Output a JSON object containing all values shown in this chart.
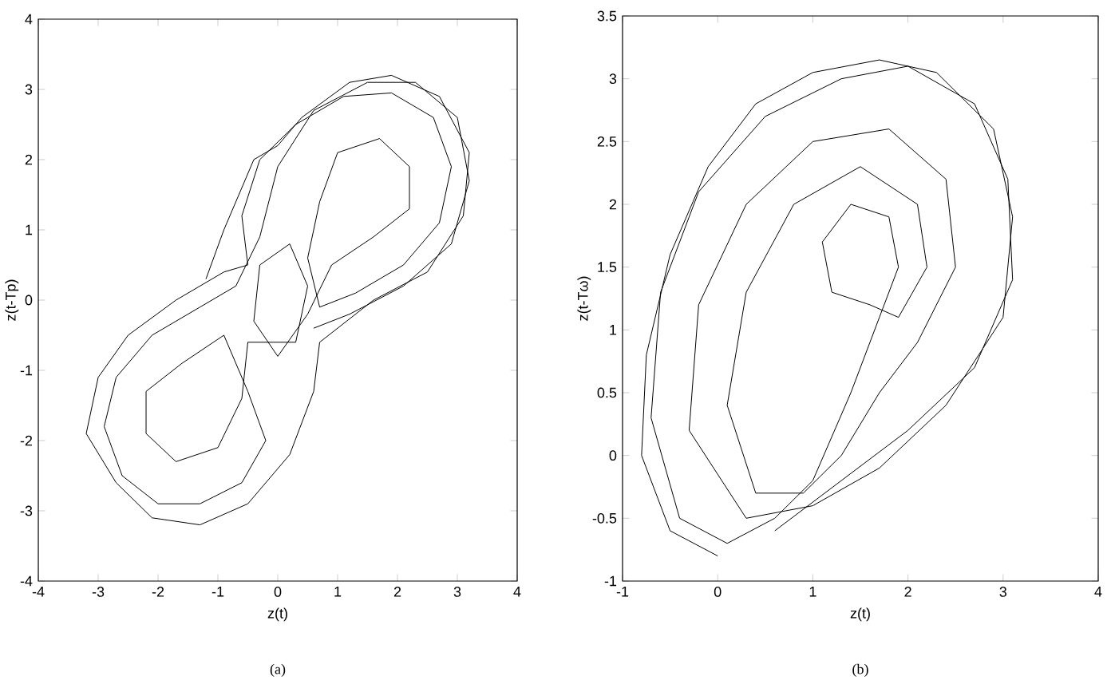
{
  "chart_data": [
    {
      "type": "line",
      "xlabel": "z(t)",
      "ylabel": "z(t-Tp)",
      "color": "#000000",
      "annotations": [
        "(a)"
      ],
      "xlim": [
        -4,
        4
      ],
      "ylim": [
        -4,
        4
      ],
      "xticks": [
        -4,
        -3,
        -2,
        -1,
        0,
        1,
        2,
        3,
        4
      ],
      "yticks": [
        -4,
        -3,
        -2,
        -1,
        0,
        1,
        2,
        3,
        4
      ],
      "x": [
        -1.2,
        -0.9,
        -0.4,
        0,
        0.4,
        1.2,
        1.9,
        2.7,
        3.2,
        3.1,
        2.5,
        1.6,
        0.7,
        0.6,
        0.2,
        -0.5,
        -1.3,
        -2.1,
        -2.7,
        -3.2,
        -3.0,
        -2.5,
        -1.7,
        -0.9,
        -0.5,
        -0.6,
        -0.3,
        0.3,
        1.1,
        1.9,
        2.6,
        2.9,
        2.7,
        2.1,
        1.3,
        0.7,
        0.5,
        0.7,
        1.0,
        1.7,
        2.2,
        2.2,
        1.6,
        0.9,
        0.5,
        0,
        -0.4,
        -0.3,
        0.2,
        0.5,
        0.3,
        -0.5,
        -0.6,
        -1.0,
        -1.7,
        -2.2,
        -2.2,
        -1.6,
        -0.9,
        -0.5,
        -0.2,
        -0.6,
        -1.3,
        -2.0,
        -2.6,
        -2.9,
        -2.7,
        -2.1,
        -1.3,
        -0.7,
        -0.3,
        0.0,
        0.6,
        1.5,
        2.3,
        3.0,
        3.2,
        2.9,
        2.1,
        1.2,
        0.6
      ],
      "values": [
        0.3,
        1.0,
        2.0,
        2.2,
        2.6,
        3.1,
        3.2,
        2.9,
        2.1,
        1.2,
        0.4,
        0,
        -0.6,
        -1.3,
        -2.2,
        -2.9,
        -3.2,
        -3.1,
        -2.6,
        -1.9,
        -1.1,
        -0.5,
        0.0,
        0.4,
        0.5,
        1.2,
        2.0,
        2.5,
        2.9,
        2.95,
        2.6,
        1.9,
        1.1,
        0.5,
        0.1,
        -0.1,
        0.6,
        1.4,
        2.1,
        2.3,
        1.9,
        1.3,
        0.9,
        0.5,
        -0.2,
        -0.8,
        -0.3,
        0.5,
        0.8,
        0.2,
        -0.6,
        -0.6,
        -1.4,
        -2.1,
        -2.3,
        -1.9,
        -1.3,
        -0.9,
        -0.5,
        -1.3,
        -2.0,
        -2.6,
        -2.9,
        -2.9,
        -2.5,
        -1.8,
        -1.1,
        -0.5,
        -0.1,
        0.2,
        0.9,
        1.9,
        2.7,
        3.1,
        3.1,
        2.6,
        1.7,
        0.8,
        0.2,
        -0.2,
        -0.4
      ]
    },
    {
      "type": "line",
      "xlabel": "z(t)",
      "ylabel": "z(t-Tω)",
      "color": "#000000",
      "annotations": [
        "(b)"
      ],
      "xlim": [
        -1,
        4
      ],
      "ylim": [
        -1,
        3.5
      ],
      "xticks": [
        -1,
        0,
        1,
        2,
        3,
        4
      ],
      "yticks": [
        -1,
        -0.5,
        0,
        0.5,
        1,
        1.5,
        2,
        2.5,
        3,
        3.5
      ],
      "x": [
        0,
        -0.5,
        -0.8,
        -0.75,
        -0.5,
        -0.1,
        0.4,
        1.0,
        1.7,
        2.3,
        2.9,
        3.1,
        3.0,
        2.4,
        1.7,
        1.0,
        0.3,
        -0.3,
        -0.2,
        0.3,
        1.0,
        1.8,
        2.4,
        2.5,
        2.1,
        1.7,
        1.3,
        0.9,
        0.4,
        0.1,
        0.3,
        0.8,
        1.5,
        2.1,
        2.2,
        1.9,
        1.6,
        1.2,
        1.1,
        1.4,
        1.8,
        1.9,
        1.7,
        1.4,
        1.0,
        0.6,
        0.1,
        -0.4,
        -0.7,
        -0.6,
        -0.2,
        0.5,
        1.3,
        2.0,
        2.7,
        3.05,
        3.1,
        2.7,
        2.0,
        1.3,
        0.6
      ],
      "values": [
        -0.8,
        -0.6,
        0,
        0.8,
        1.6,
        2.3,
        2.8,
        3.05,
        3.15,
        3.05,
        2.6,
        1.9,
        1.1,
        0.4,
        -0.1,
        -0.4,
        -0.5,
        0.2,
        1.2,
        2.0,
        2.5,
        2.6,
        2.2,
        1.5,
        0.9,
        0.5,
        0,
        -0.3,
        -0.3,
        0.4,
        1.3,
        2.0,
        2.3,
        2.0,
        1.5,
        1.1,
        1.2,
        1.3,
        1.7,
        2.0,
        1.9,
        1.5,
        1.1,
        0.5,
        -0.2,
        -0.5,
        -0.7,
        -0.5,
        0.3,
        1.3,
        2.1,
        2.7,
        3.0,
        3.1,
        2.8,
        2.2,
        1.4,
        0.7,
        0.2,
        -0.2,
        -0.6
      ]
    }
  ]
}
